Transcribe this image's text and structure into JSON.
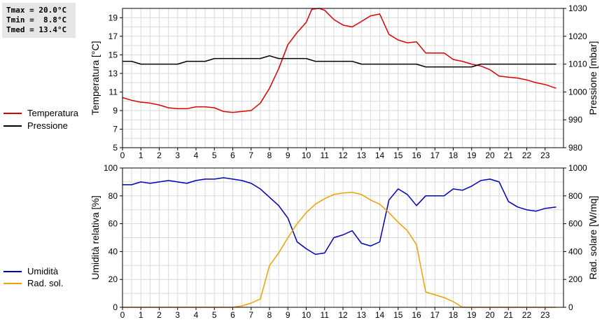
{
  "stats": {
    "tmax": "Tmax = 20.0°C",
    "tmin": "Tmin =  8.8°C",
    "tmed": "Tmed = 13.4°C"
  },
  "chart_data": [
    {
      "type": "line",
      "title": "",
      "xlabel": "",
      "ylabel_left": "Temperatura [°C]",
      "ylabel_right": "Pressione [mbar]",
      "xlim": [
        0,
        24
      ],
      "x_ticks": [
        0,
        1,
        2,
        3,
        4,
        5,
        6,
        7,
        8,
        9,
        10,
        11,
        12,
        13,
        14,
        15,
        16,
        17,
        18,
        19,
        20,
        21,
        22,
        23
      ],
      "ylim_left": [
        5,
        20
      ],
      "y_ticks_left": [
        5,
        7,
        9,
        11,
        13,
        15,
        17,
        19
      ],
      "ylim_right": [
        980,
        1030
      ],
      "y_ticks_right": [
        980,
        990,
        1000,
        1010,
        1020,
        1030
      ],
      "grid": true,
      "legend_position": "left",
      "series": [
        {
          "name": "Temperatura",
          "color": "#dd0000",
          "axis": "left",
          "points": [
            [
              0,
              10.4
            ],
            [
              0.5,
              10.1
            ],
            [
              1,
              9.9
            ],
            [
              1.5,
              9.8
            ],
            [
              2,
              9.6
            ],
            [
              2.5,
              9.3
            ],
            [
              3,
              9.2
            ],
            [
              3.5,
              9.2
            ],
            [
              4,
              9.4
            ],
            [
              4.5,
              9.4
            ],
            [
              5,
              9.3
            ],
            [
              5.5,
              8.9
            ],
            [
              6,
              8.8
            ],
            [
              6.5,
              8.9
            ],
            [
              7,
              9.0
            ],
            [
              7.5,
              9.8
            ],
            [
              8,
              11.4
            ],
            [
              8.5,
              13.5
            ],
            [
              9,
              16.1
            ],
            [
              9.5,
              17.4
            ],
            [
              10,
              18.5
            ],
            [
              10.3,
              19.9
            ],
            [
              10.7,
              20.0
            ],
            [
              11,
              19.8
            ],
            [
              11.5,
              18.8
            ],
            [
              12,
              18.2
            ],
            [
              12.5,
              18.0
            ],
            [
              13,
              18.6
            ],
            [
              13.5,
              19.2
            ],
            [
              14,
              19.4
            ],
            [
              14.5,
              17.2
            ],
            [
              15,
              16.6
            ],
            [
              15.5,
              16.3
            ],
            [
              16,
              16.4
            ],
            [
              16.5,
              15.2
            ],
            [
              17,
              15.2
            ],
            [
              17.5,
              15.2
            ],
            [
              18,
              14.5
            ],
            [
              18.5,
              14.3
            ],
            [
              19,
              14.0
            ],
            [
              19.5,
              13.8
            ],
            [
              20,
              13.4
            ],
            [
              20.5,
              12.7
            ],
            [
              21,
              12.6
            ],
            [
              21.5,
              12.5
            ],
            [
              22,
              12.3
            ],
            [
              22.5,
              12.0
            ],
            [
              23,
              11.8
            ],
            [
              23.6,
              11.4
            ]
          ]
        },
        {
          "name": "Pressione",
          "color": "#000000",
          "axis": "right",
          "points": [
            [
              0,
              1011
            ],
            [
              0.5,
              1011
            ],
            [
              1,
              1010
            ],
            [
              1.5,
              1010
            ],
            [
              2,
              1010
            ],
            [
              2.5,
              1010
            ],
            [
              3,
              1010
            ],
            [
              3.5,
              1011
            ],
            [
              4,
              1011
            ],
            [
              4.5,
              1011
            ],
            [
              5,
              1012
            ],
            [
              5.5,
              1012
            ],
            [
              6,
              1012
            ],
            [
              6.5,
              1012
            ],
            [
              7,
              1012
            ],
            [
              7.5,
              1012
            ],
            [
              8,
              1013
            ],
            [
              8.5,
              1012
            ],
            [
              9,
              1012
            ],
            [
              9.5,
              1012
            ],
            [
              10,
              1012
            ],
            [
              10.5,
              1011
            ],
            [
              11,
              1011
            ],
            [
              11.5,
              1011
            ],
            [
              12,
              1011
            ],
            [
              12.5,
              1011
            ],
            [
              13,
              1010
            ],
            [
              13.5,
              1010
            ],
            [
              14,
              1010
            ],
            [
              14.5,
              1010
            ],
            [
              15,
              1010
            ],
            [
              15.5,
              1010
            ],
            [
              16,
              1010
            ],
            [
              16.5,
              1009
            ],
            [
              17,
              1009
            ],
            [
              17.5,
              1009
            ],
            [
              18,
              1009
            ],
            [
              18.5,
              1009
            ],
            [
              19,
              1009
            ],
            [
              19.5,
              1010
            ],
            [
              20,
              1010
            ],
            [
              20.5,
              1010
            ],
            [
              21,
              1010
            ],
            [
              21.5,
              1010
            ],
            [
              22,
              1010
            ],
            [
              22.5,
              1010
            ],
            [
              23,
              1010
            ],
            [
              23.6,
              1010
            ]
          ]
        }
      ]
    },
    {
      "type": "line",
      "title": "",
      "xlabel": "",
      "ylabel_left": "Umidità relativa [%]",
      "ylabel_right": "Rad. solare [W/mq]",
      "xlim": [
        0,
        24
      ],
      "x_ticks": [
        0,
        1,
        2,
        3,
        4,
        5,
        6,
        7,
        8,
        9,
        10,
        11,
        12,
        13,
        14,
        15,
        16,
        17,
        18,
        19,
        20,
        21,
        22,
        23
      ],
      "ylim_left": [
        0,
        100
      ],
      "y_ticks_left": [
        0,
        20,
        40,
        60,
        80,
        100
      ],
      "ylim_right": [
        0,
        1000
      ],
      "y_ticks_right": [
        0,
        200,
        400,
        600,
        800,
        1000
      ],
      "grid": true,
      "legend_position": "left",
      "series": [
        {
          "name": "Umidità",
          "color": "#0000bb",
          "axis": "left",
          "points": [
            [
              0,
              88
            ],
            [
              0.5,
              88
            ],
            [
              1,
              90
            ],
            [
              1.5,
              89
            ],
            [
              2,
              90
            ],
            [
              2.5,
              91
            ],
            [
              3,
              90
            ],
            [
              3.5,
              89
            ],
            [
              4,
              91
            ],
            [
              4.5,
              92
            ],
            [
              5,
              92
            ],
            [
              5.5,
              93
            ],
            [
              6,
              92
            ],
            [
              6.5,
              91
            ],
            [
              7,
              89
            ],
            [
              7.5,
              85
            ],
            [
              8,
              79
            ],
            [
              8.5,
              73
            ],
            [
              9,
              64
            ],
            [
              9.5,
              47
            ],
            [
              10,
              42
            ],
            [
              10.5,
              38
            ],
            [
              11,
              39
            ],
            [
              11.5,
              50
            ],
            [
              12,
              52
            ],
            [
              12.5,
              55
            ],
            [
              13,
              46
            ],
            [
              13.5,
              44
            ],
            [
              14,
              47
            ],
            [
              14.5,
              77
            ],
            [
              15,
              85
            ],
            [
              15.5,
              81
            ],
            [
              16,
              73
            ],
            [
              16.5,
              80
            ],
            [
              17,
              80
            ],
            [
              17.5,
              80
            ],
            [
              18,
              85
            ],
            [
              18.5,
              84
            ],
            [
              19,
              87
            ],
            [
              19.5,
              91
            ],
            [
              20,
              92
            ],
            [
              20.5,
              90
            ],
            [
              21,
              76
            ],
            [
              21.5,
              72
            ],
            [
              22,
              70
            ],
            [
              22.5,
              69
            ],
            [
              23,
              71
            ],
            [
              23.6,
              72
            ]
          ]
        },
        {
          "name": "Rad. sol.",
          "color": "#f0a000",
          "axis": "right",
          "points": [
            [
              0,
              0
            ],
            [
              1,
              0
            ],
            [
              2,
              0
            ],
            [
              3,
              0
            ],
            [
              4,
              0
            ],
            [
              5,
              0
            ],
            [
              6,
              0
            ],
            [
              6.5,
              10
            ],
            [
              7,
              30
            ],
            [
              7.5,
              60
            ],
            [
              8,
              300
            ],
            [
              8.5,
              390
            ],
            [
              9,
              500
            ],
            [
              9.5,
              600
            ],
            [
              10,
              680
            ],
            [
              10.5,
              740
            ],
            [
              11,
              780
            ],
            [
              11.5,
              810
            ],
            [
              12,
              820
            ],
            [
              12.5,
              825
            ],
            [
              13,
              810
            ],
            [
              13.5,
              770
            ],
            [
              14,
              740
            ],
            [
              14.5,
              680
            ],
            [
              15,
              610
            ],
            [
              15.5,
              550
            ],
            [
              16,
              450
            ],
            [
              16.5,
              110
            ],
            [
              17,
              90
            ],
            [
              17.5,
              70
            ],
            [
              18,
              40
            ],
            [
              18.5,
              0
            ],
            [
              19,
              0
            ],
            [
              20,
              0
            ],
            [
              21,
              0
            ],
            [
              22,
              0
            ],
            [
              23,
              0
            ],
            [
              23.6,
              0
            ]
          ]
        }
      ]
    }
  ]
}
